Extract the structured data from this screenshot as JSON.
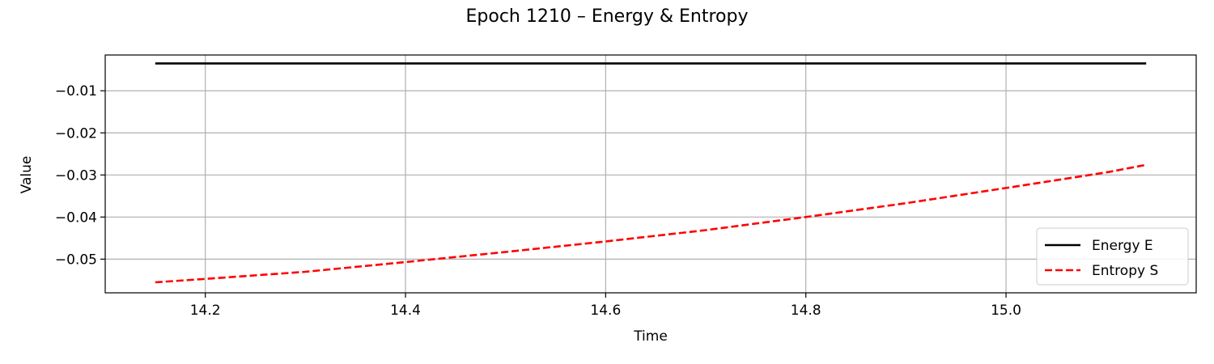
{
  "chart_data": {
    "type": "line",
    "title": "Epoch 1210 – Energy & Entropy",
    "xlabel": "Time",
    "ylabel": "Value",
    "xlim": [
      14.1,
      15.19
    ],
    "ylim": [
      -0.058,
      -0.0015
    ],
    "xticks": [
      14.2,
      14.4,
      14.6,
      14.8,
      15.0
    ],
    "xtick_labels": [
      "14.2",
      "14.4",
      "14.6",
      "14.8",
      "15.0"
    ],
    "yticks": [
      -0.01,
      -0.02,
      -0.03,
      -0.04,
      -0.05
    ],
    "ytick_labels": [
      "−0.01",
      "−0.02",
      "−0.03",
      "−0.04",
      "−0.05"
    ],
    "grid": true,
    "legend_position": "lower-right",
    "series": [
      {
        "name": "Energy E",
        "color": "#000000",
        "style": "solid",
        "x": [
          14.15,
          15.14
        ],
        "y": [
          -0.0035,
          -0.0035
        ]
      },
      {
        "name": "Entropy S",
        "color": "#ff0000",
        "style": "dashed",
        "x": [
          14.15,
          14.2,
          14.3,
          14.4,
          14.5,
          14.6,
          14.7,
          14.8,
          14.9,
          15.0,
          15.1,
          15.14
        ],
        "y": [
          -0.0555,
          -0.0547,
          -0.053,
          -0.0507,
          -0.0483,
          -0.0458,
          -0.0431,
          -0.04,
          -0.0367,
          -0.0331,
          -0.0294,
          -0.0276
        ]
      }
    ]
  }
}
